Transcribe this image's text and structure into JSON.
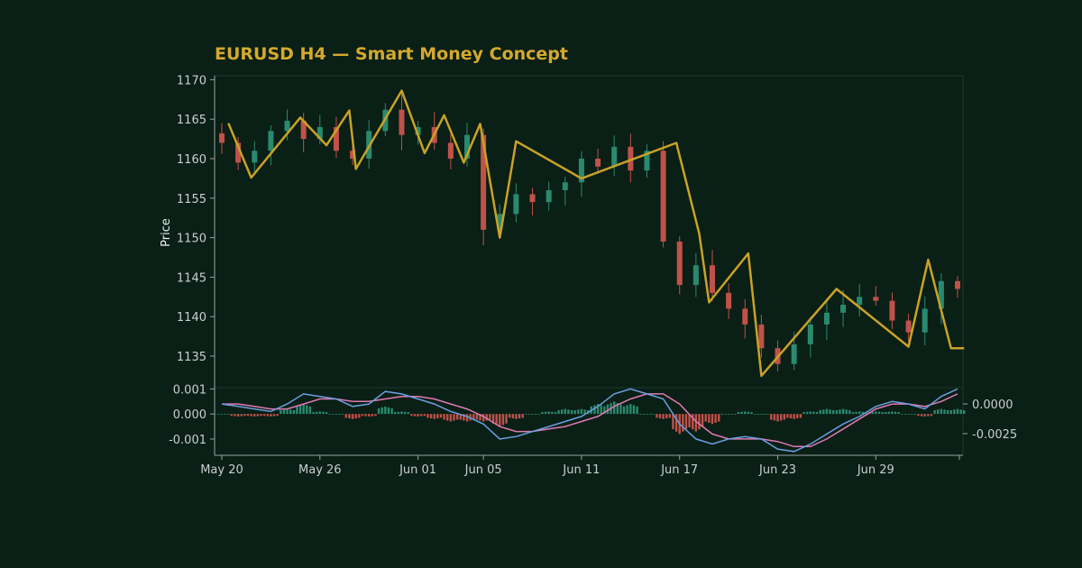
{
  "chart_data": {
    "type": "candlestick",
    "title": "EURUSD H4 — Smart Money Concept",
    "ylabel": "Price",
    "ylim": [
      1131,
      1170.5
    ],
    "y_ticks": [
      "1170",
      "1165",
      "1160",
      "1155",
      "1150",
      "1145",
      "1140",
      "1135"
    ],
    "x_tick_labels": [
      "May 20",
      "May 26",
      "Jun 01",
      "Jun 05",
      "Jun 11",
      "Jun 17",
      "Jun 23",
      "Jun 29"
    ],
    "colors": {
      "background": "#0a1f15",
      "up": "#2a8a6f",
      "down": "#c0524a",
      "zigzag": "#c9a227",
      "macd": "#6a9fe0",
      "signal": "#e07ab5",
      "text": "#c9ced3",
      "title": "#d4a92e"
    },
    "price_series": {
      "name": "EURUSD",
      "x": [
        "May 20",
        "May 21",
        "May 22",
        "May 23",
        "May 24",
        "May 25",
        "May 26",
        "May 27",
        "May 28",
        "May 29",
        "May 30",
        "May 31",
        "Jun 01",
        "Jun 02",
        "Jun 03",
        "Jun 04",
        "Jun 05",
        "Jun 06",
        "Jun 07",
        "Jun 08",
        "Jun 09",
        "Jun 10",
        "Jun 11",
        "Jun 12",
        "Jun 13",
        "Jun 14",
        "Jun 15",
        "Jun 16",
        "Jun 17",
        "Jun 18",
        "Jun 19",
        "Jun 20",
        "Jun 21",
        "Jun 22",
        "Jun 23",
        "Jun 24",
        "Jun 25",
        "Jun 26",
        "Jun 27",
        "Jun 28",
        "Jun 29",
        "Jun 30",
        "Jul 01",
        "Jul 02",
        "Jul 03",
        "Jul 04"
      ],
      "close": [
        1162.0,
        1159.5,
        1161.0,
        1163.5,
        1164.8,
        1162.5,
        1164.0,
        1161.0,
        1160.0,
        1163.5,
        1166.2,
        1163.0,
        1164.0,
        1162.0,
        1160.0,
        1163.0,
        1151.0,
        1153.0,
        1155.5,
        1154.5,
        1156.0,
        1157.0,
        1160.0,
        1159.0,
        1161.5,
        1158.5,
        1161.0,
        1149.5,
        1144.0,
        1146.5,
        1143.0,
        1141.0,
        1139.0,
        1136.0,
        1134.0,
        1136.5,
        1139.0,
        1140.5,
        1141.5,
        1142.5,
        1142.0,
        1139.5,
        1138.0,
        1141.0,
        1144.5,
        1143.5
      ]
    },
    "zigzag": {
      "x": [
        0.2,
        0.9,
        2.4,
        3.2,
        3.9,
        4.1,
        5.5,
        6.2,
        6.8,
        7.4,
        7.9,
        8.5,
        9.0,
        11.0,
        13.9,
        14.6,
        14.9,
        16.1,
        16.5,
        18.8,
        21.0,
        21.6,
        22.3,
        22.7
      ],
      "y": [
        1164.5,
        1157.6,
        1165.2,
        1161.7,
        1166.1,
        1158.7,
        1168.6,
        1160.7,
        1165.5,
        1159.5,
        1164.4,
        1150.0,
        1162.2,
        1157.5,
        1162.0,
        1150.5,
        1141.8,
        1148.0,
        1132.5,
        1143.5,
        1136.2,
        1147.2,
        1136.0,
        1136.0
      ]
    },
    "macd_panel": {
      "left_ticks": [
        "0.001",
        "0.000",
        "-0.001"
      ],
      "right_ticks": [
        "0.0000",
        "-0.0025"
      ],
      "macd_line": [
        0.0004,
        0.0003,
        0.0002,
        0.0001,
        0.0004,
        0.0008,
        0.0007,
        0.0006,
        0.0003,
        0.0004,
        0.0009,
        0.0008,
        0.0006,
        0.0004,
        0.0001,
        -0.0001,
        -0.0004,
        -0.001,
        -0.0009,
        -0.0007,
        -0.0005,
        -0.0003,
        -0.0001,
        0.0003,
        0.0008,
        0.001,
        0.0008,
        0.0006,
        -0.0004,
        -0.001,
        -0.0012,
        -0.001,
        -0.0009,
        -0.001,
        -0.0014,
        -0.0015,
        -0.0012,
        -0.0008,
        -0.0004,
        -0.0001,
        0.0003,
        0.0005,
        0.0004,
        0.0002,
        0.0007,
        0.001
      ],
      "signal_line": [
        0.0004,
        0.0004,
        0.0003,
        0.0002,
        0.0002,
        0.0004,
        0.0006,
        0.0006,
        0.0005,
        0.0005,
        0.0006,
        0.0007,
        0.0007,
        0.0006,
        0.0004,
        0.0002,
        -0.0001,
        -0.0005,
        -0.0007,
        -0.0007,
        -0.0006,
        -0.0005,
        -0.0003,
        -0.0001,
        0.0003,
        0.0006,
        0.0008,
        0.0008,
        0.0004,
        -0.0003,
        -0.0008,
        -0.001,
        -0.001,
        -0.001,
        -0.0011,
        -0.0013,
        -0.0013,
        -0.001,
        -0.0006,
        -0.0002,
        0.0002,
        0.0004,
        0.0004,
        0.0003,
        0.0005,
        0.0008
      ],
      "histogram": [
        0.0,
        -0.0001,
        -0.0001,
        -0.0001,
        0.0002,
        0.0004,
        0.0001,
        0.0,
        -0.0002,
        -0.0001,
        0.0003,
        0.0001,
        -0.0001,
        -0.0002,
        -0.0003,
        -0.0003,
        -0.0003,
        -0.0005,
        -0.0002,
        0.0,
        0.0001,
        0.0002,
        0.0002,
        0.0004,
        0.0005,
        0.0004,
        0.0,
        -0.0002,
        -0.0008,
        -0.0007,
        -0.0004,
        0.0,
        0.0001,
        0.0,
        -0.0003,
        -0.0002,
        0.0001,
        0.0002,
        0.0002,
        0.0001,
        0.0001,
        0.0001,
        0.0,
        -0.0001,
        0.0002,
        0.0002
      ]
    }
  }
}
